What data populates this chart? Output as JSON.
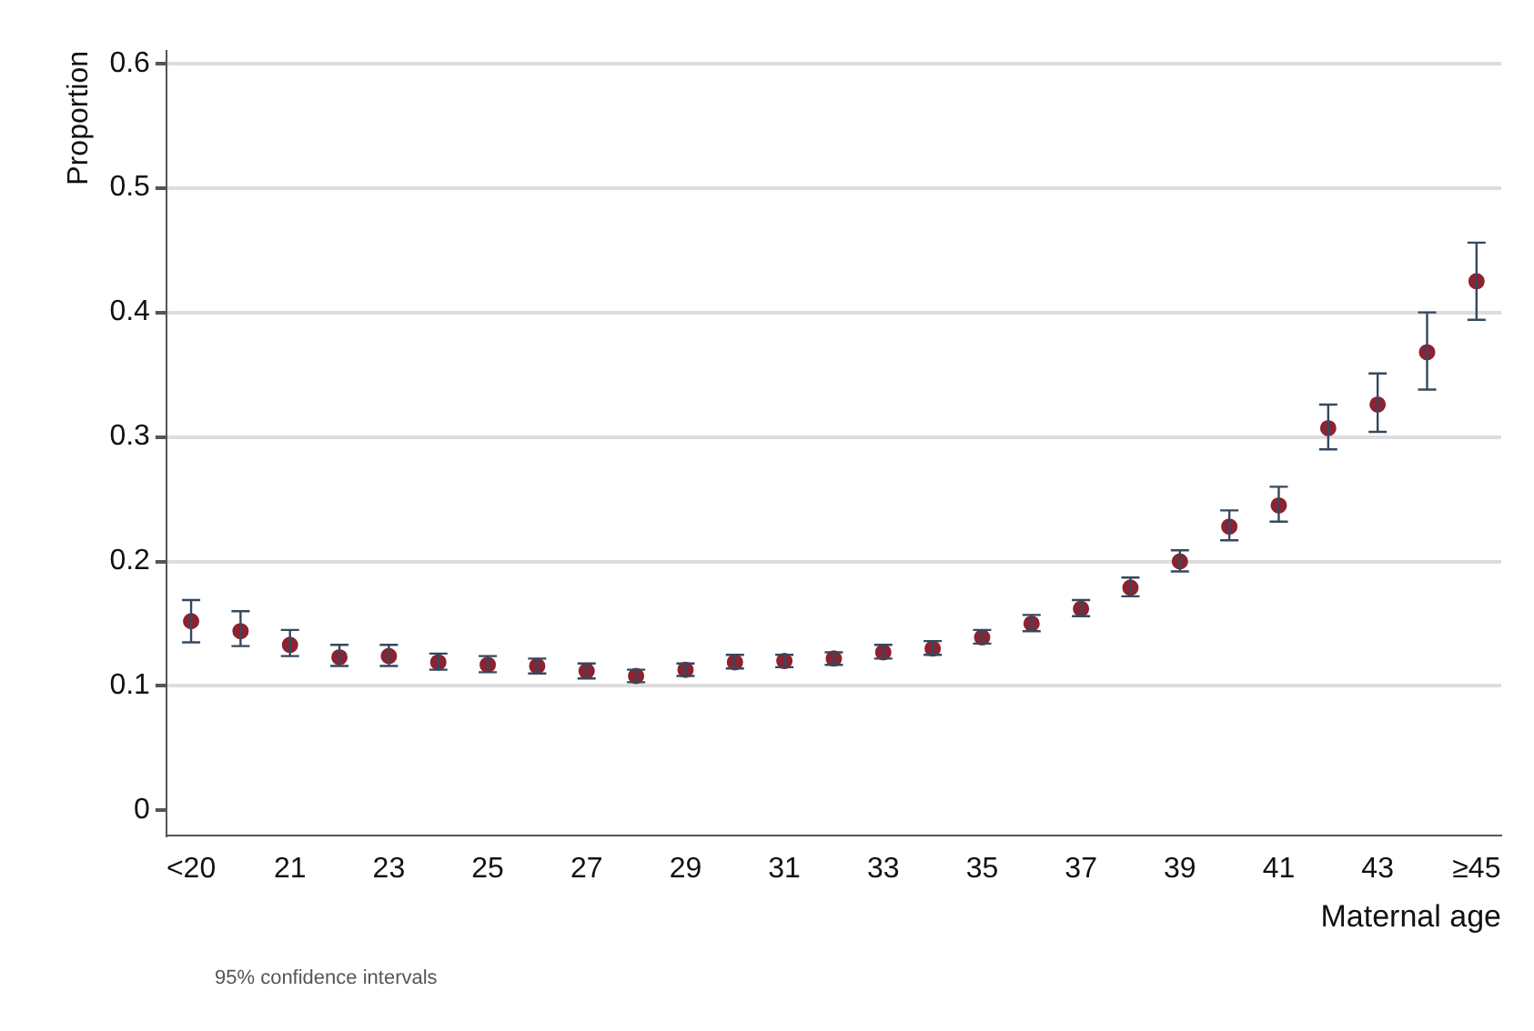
{
  "chart_data": {
    "type": "scatter",
    "xlabel": "Maternal age",
    "ylabel": "Proportion",
    "categories": [
      "<20",
      null,
      "21",
      null,
      "23",
      null,
      "25",
      null,
      "27",
      null,
      "29",
      null,
      "31",
      null,
      "33",
      null,
      "35",
      null,
      "37",
      null,
      "39",
      null,
      "41",
      null,
      "43",
      null,
      "≥45"
    ],
    "series": [
      {
        "color": "#8b2332",
        "values": [
          0.152,
          0.144,
          0.133,
          0.123,
          0.124,
          0.119,
          0.117,
          0.116,
          0.112,
          0.108,
          0.113,
          0.119,
          0.12,
          0.122,
          0.127,
          0.13,
          0.139,
          0.15,
          0.162,
          0.179,
          0.2,
          0.228,
          0.245,
          0.307,
          0.326,
          0.368,
          0.425
        ],
        "errors": [
          [
            0.135,
            0.169
          ],
          [
            0.132,
            0.16
          ],
          [
            0.124,
            0.145
          ],
          [
            0.116,
            0.133
          ],
          [
            0.116,
            0.133
          ],
          [
            0.113,
            0.126
          ],
          [
            0.111,
            0.124
          ],
          [
            0.11,
            0.122
          ],
          [
            0.106,
            0.118
          ],
          [
            0.103,
            0.113
          ],
          [
            0.108,
            0.118
          ],
          [
            0.114,
            0.125
          ],
          [
            0.115,
            0.125
          ],
          [
            0.117,
            0.127
          ],
          [
            0.122,
            0.133
          ],
          [
            0.125,
            0.136
          ],
          [
            0.134,
            0.145
          ],
          [
            0.144,
            0.157
          ],
          [
            0.156,
            0.169
          ],
          [
            0.172,
            0.187
          ],
          [
            0.192,
            0.209
          ],
          [
            0.217,
            0.241
          ],
          [
            0.232,
            0.26
          ],
          [
            0.29,
            0.326
          ],
          [
            0.304,
            0.351
          ],
          [
            0.338,
            0.4
          ],
          [
            0.394,
            0.456
          ]
        ]
      }
    ],
    "ylim": [
      -0.02,
      0.61
    ],
    "yticks": [
      0,
      0.1,
      0.2,
      0.3,
      0.4,
      0.5,
      0.6
    ],
    "grid": "y",
    "marker": "circle",
    "legend": false,
    "annotations": [
      "95% confidence intervals"
    ]
  }
}
